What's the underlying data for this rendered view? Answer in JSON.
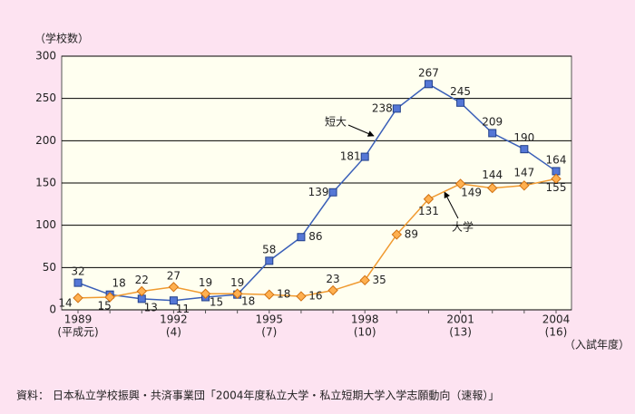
{
  "chart_data": {
    "type": "line",
    "y_axis_title": "（学校数）",
    "x_axis_title": "（入試年度）",
    "source": "資料： 日本私立学校振興・共済事業団「2004年度私立大学・私立短期大学入学志願動向（速報）」",
    "categories": [
      "1989",
      null,
      null,
      "1992",
      null,
      null,
      "1995",
      null,
      null,
      "1998",
      null,
      null,
      "2001",
      null,
      null,
      "2004"
    ],
    "x_sublabels": [
      "(平成元)",
      null,
      null,
      "(4)",
      null,
      null,
      "(7)",
      null,
      null,
      "(10)",
      null,
      null,
      "(13)",
      null,
      null,
      "(16)"
    ],
    "series": [
      {
        "name": "短大",
        "color": "#3a5fb8",
        "marker": "square",
        "values": [
          32,
          18,
          13,
          11,
          15,
          18,
          58,
          86,
          139,
          181,
          238,
          267,
          245,
          209,
          190,
          164
        ]
      },
      {
        "name": "大学",
        "color": "#f09a30",
        "marker": "diamond",
        "values": [
          14,
          15,
          22,
          27,
          19,
          19,
          18,
          16,
          23,
          35,
          89,
          131,
          149,
          144,
          147,
          155
        ]
      }
    ],
    "ylim": [
      0,
      300
    ],
    "yticks": [
      0,
      50,
      100,
      150,
      200,
      250,
      300
    ],
    "grid": true
  }
}
